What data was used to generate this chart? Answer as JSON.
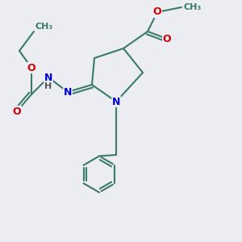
{
  "bg_color": "#ecedf2",
  "atom_colors": {
    "C": "#3a7a6a",
    "N": "#0000cc",
    "O": "#cc0000",
    "H": "#555555"
  },
  "bond_color": "#3a7a6a",
  "bond_width": 1.5,
  "font_size_atoms": 9,
  "font_size_small": 8
}
